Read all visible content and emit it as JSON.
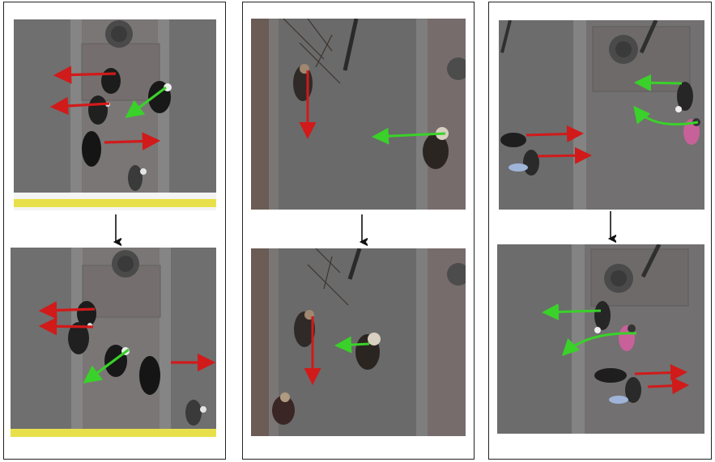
{
  "figure": {
    "panels": [
      {
        "name": "scene-1",
        "frames": [
          "scene-1-before",
          "scene-1-after"
        ],
        "arrow_colors": [
          "#d11a1a",
          "#3ad12a"
        ]
      },
      {
        "name": "scene-2",
        "frames": [
          "scene-2-before",
          "scene-2-after"
        ],
        "arrow_colors": [
          "#d11a1a",
          "#3ad12a"
        ]
      },
      {
        "name": "scene-3",
        "frames": [
          "scene-3-before",
          "scene-3-after"
        ],
        "arrow_colors": [
          "#d11a1a",
          "#3ad12a"
        ]
      }
    ],
    "colors": {
      "red_arrow": "#d11a1a",
      "green_arrow": "#3ad12a",
      "pavement": "#6d6d6d",
      "transition_arrow": "#111111"
    }
  }
}
